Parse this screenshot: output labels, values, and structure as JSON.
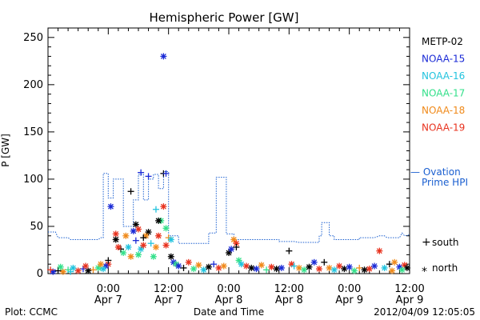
{
  "chart_data": {
    "type": "scatter",
    "title": "Hemispheric Power [GW]",
    "ylabel": "P [GW]",
    "xlabel": "Date and Time",
    "ylim": [
      0,
      260
    ],
    "yticks": [
      0,
      50,
      100,
      150,
      200,
      250
    ],
    "xlim": [
      "2012-04-06T12:00",
      "2012-04-09T12:00"
    ],
    "xticks": [
      {
        "t": "2012-04-07T00:00",
        "line1": "0:00",
        "line2": "Apr 7"
      },
      {
        "t": "2012-04-07T12:00",
        "line1": "12:00",
        "line2": "Apr 7"
      },
      {
        "t": "2012-04-08T00:00",
        "line1": "0:00",
        "line2": "Apr 8"
      },
      {
        "t": "2012-04-08T12:00",
        "line1": "12:00",
        "line2": "Apr 8"
      },
      {
        "t": "2012-04-09T00:00",
        "line1": "0:00",
        "line2": "Apr 9"
      },
      {
        "t": "2012-04-09T12:00",
        "line1": "12:00",
        "line2": "Apr 9"
      }
    ],
    "grid": false,
    "legend_position": "right",
    "series": [
      {
        "name": "METP-02",
        "color": "#000000"
      },
      {
        "name": "NOAA-15",
        "color": "#1a2ad6"
      },
      {
        "name": "NOAA-16",
        "color": "#22c3de"
      },
      {
        "name": "NOAA-17",
        "color": "#33e08a"
      },
      {
        "name": "NOAA-18",
        "color": "#f08a1a"
      },
      {
        "name": "NOAA-19",
        "color": "#e8321e"
      }
    ],
    "ovation": {
      "name_line1": "— Ovation",
      "name_line2": "Prime HPI",
      "color": "#1a5fd0",
      "points": [
        [
          "2012-04-06T12:00",
          44
        ],
        [
          "2012-04-06T13:30",
          44
        ],
        [
          "2012-04-06T14:00",
          38
        ],
        [
          "2012-04-06T16:00",
          38
        ],
        [
          "2012-04-06T16:30",
          36
        ],
        [
          "2012-04-06T22:00",
          36
        ],
        [
          "2012-04-06T22:30",
          38
        ],
        [
          "2012-04-06T23:00",
          38
        ],
        [
          "2012-04-06T23:00",
          106
        ],
        [
          "2012-04-07T00:00",
          106
        ],
        [
          "2012-04-07T00:00",
          80
        ],
        [
          "2012-04-07T01:00",
          80
        ],
        [
          "2012-04-07T01:00",
          100
        ],
        [
          "2012-04-07T03:00",
          100
        ],
        [
          "2012-04-07T03:00",
          50
        ],
        [
          "2012-04-07T05:00",
          50
        ],
        [
          "2012-04-07T05:00",
          78
        ],
        [
          "2012-04-07T06:00",
          78
        ],
        [
          "2012-04-07T06:00",
          105
        ],
        [
          "2012-04-07T07:00",
          105
        ],
        [
          "2012-04-07T07:00",
          78
        ],
        [
          "2012-04-07T08:00",
          78
        ],
        [
          "2012-04-07T08:00",
          100
        ],
        [
          "2012-04-07T09:00",
          100
        ],
        [
          "2012-04-07T09:00",
          105
        ],
        [
          "2012-04-07T10:00",
          105
        ],
        [
          "2012-04-07T10:00",
          90
        ],
        [
          "2012-04-07T11:00",
          90
        ],
        [
          "2012-04-07T11:00",
          108
        ],
        [
          "2012-04-07T12:00",
          108
        ],
        [
          "2012-04-07T12:00",
          40
        ],
        [
          "2012-04-07T14:00",
          40
        ],
        [
          "2012-04-07T14:00",
          32
        ],
        [
          "2012-04-07T20:00",
          32
        ],
        [
          "2012-04-07T20:00",
          43
        ],
        [
          "2012-04-07T21:30",
          43
        ],
        [
          "2012-04-07T21:30",
          102
        ],
        [
          "2012-04-07T23:30",
          102
        ],
        [
          "2012-04-07T23:30",
          42
        ],
        [
          "2012-04-08T01:00",
          42
        ],
        [
          "2012-04-08T01:00",
          36
        ],
        [
          "2012-04-08T10:00",
          36
        ],
        [
          "2012-04-08T10:00",
          34
        ],
        [
          "2012-04-08T13:00",
          34
        ],
        [
          "2012-04-08T14:00",
          33
        ],
        [
          "2012-04-08T18:00",
          33
        ],
        [
          "2012-04-08T18:00",
          40
        ],
        [
          "2012-04-08T18:30",
          40
        ],
        [
          "2012-04-08T18:30",
          54
        ],
        [
          "2012-04-08T20:00",
          54
        ],
        [
          "2012-04-08T20:00",
          40
        ],
        [
          "2012-04-08T21:00",
          40
        ],
        [
          "2012-04-08T21:00",
          36
        ],
        [
          "2012-04-09T02:00",
          36
        ],
        [
          "2012-04-09T02:00",
          38
        ],
        [
          "2012-04-09T05:00",
          38
        ],
        [
          "2012-04-09T06:00",
          40
        ],
        [
          "2012-04-09T07:00",
          40
        ],
        [
          "2012-04-09T07:30",
          38
        ],
        [
          "2012-04-09T10:00",
          38
        ],
        [
          "2012-04-09T10:30",
          43
        ],
        [
          "2012-04-09T11:00",
          40
        ],
        [
          "2012-04-09T12:00",
          41
        ]
      ]
    },
    "markers": {
      "south": "+",
      "north": "*"
    },
    "marker_legend": [
      {
        "marker": "+",
        "label": "south"
      },
      {
        "marker": "*",
        "label": "north"
      }
    ],
    "points": [
      {
        "s": "NOAA-15",
        "h": "north",
        "t": "2012-04-07T11:00",
        "y": 230
      },
      {
        "s": "NOAA-15",
        "h": "south",
        "t": "2012-04-07T08:00",
        "y": 103
      },
      {
        "s": "NOAA-15",
        "h": "south",
        "t": "2012-04-07T06:30",
        "y": 107
      },
      {
        "s": "METP-02",
        "h": "south",
        "t": "2012-04-07T11:00",
        "y": 106
      },
      {
        "s": "NOAA-15",
        "h": "south",
        "t": "2012-04-07T11:30",
        "y": 106
      },
      {
        "s": "NOAA-15",
        "h": "north",
        "t": "2012-04-07T00:30",
        "y": 71
      },
      {
        "s": "METP-02",
        "h": "south",
        "t": "2012-04-07T04:30",
        "y": 87
      },
      {
        "s": "NOAA-19",
        "h": "north",
        "t": "2012-04-07T11:00",
        "y": 71
      },
      {
        "s": "NOAA-16",
        "h": "south",
        "t": "2012-04-07T09:30",
        "y": 68
      },
      {
        "s": "NOAA-17",
        "h": "north",
        "t": "2012-04-07T10:30",
        "y": 56
      },
      {
        "s": "METP-02",
        "h": "north",
        "t": "2012-04-07T10:00",
        "y": 56
      },
      {
        "s": "METP-02",
        "h": "north",
        "t": "2012-04-07T05:30",
        "y": 52
      },
      {
        "s": "NOAA-19",
        "h": "north",
        "t": "2012-04-07T06:00",
        "y": 47
      },
      {
        "s": "METP-02",
        "h": "north",
        "t": "2012-04-07T08:00",
        "y": 44
      },
      {
        "s": "NOAA-18",
        "h": "north",
        "t": "2012-04-07T07:30",
        "y": 40
      },
      {
        "s": "NOAA-15",
        "h": "north",
        "t": "2012-04-07T05:00",
        "y": 45
      },
      {
        "s": "NOAA-19",
        "h": "north",
        "t": "2012-04-07T01:30",
        "y": 42
      },
      {
        "s": "METP-02",
        "h": "north",
        "t": "2012-04-07T01:30",
        "y": 36
      },
      {
        "s": "METP-02",
        "h": "south",
        "t": "2012-04-07T02:30",
        "y": 26
      },
      {
        "s": "NOAA-19",
        "h": "north",
        "t": "2012-04-07T02:00",
        "y": 28
      },
      {
        "s": "NOAA-17",
        "h": "north",
        "t": "2012-04-07T03:00",
        "y": 22
      },
      {
        "s": "NOAA-16",
        "h": "north",
        "t": "2012-04-07T04:00",
        "y": 28
      },
      {
        "s": "NOAA-18",
        "h": "north",
        "t": "2012-04-07T04:30",
        "y": 18
      },
      {
        "s": "NOAA-15",
        "h": "south",
        "t": "2012-04-07T05:30",
        "y": 35
      },
      {
        "s": "NOAA-17",
        "h": "north",
        "t": "2012-04-07T06:00",
        "y": 20
      },
      {
        "s": "NOAA-16",
        "h": "north",
        "t": "2012-04-07T06:30",
        "y": 26
      },
      {
        "s": "METP-02",
        "h": "south",
        "t": "2012-04-07T07:00",
        "y": 38
      },
      {
        "s": "NOAA-19",
        "h": "north",
        "t": "2012-04-07T07:00",
        "y": 30
      },
      {
        "s": "NOAA-16",
        "h": "south",
        "t": "2012-04-07T08:30",
        "y": 32
      },
      {
        "s": "NOAA-17",
        "h": "north",
        "t": "2012-04-07T09:00",
        "y": 18
      },
      {
        "s": "NOAA-18",
        "h": "north",
        "t": "2012-04-07T09:30",
        "y": 28
      },
      {
        "s": "NOAA-19",
        "h": "north",
        "t": "2012-04-07T10:00",
        "y": 40
      },
      {
        "s": "NOAA-17",
        "h": "north",
        "t": "2012-04-07T11:30",
        "y": 48
      },
      {
        "s": "NOAA-18",
        "h": "south",
        "t": "2012-04-07T12:00",
        "y": 38
      },
      {
        "s": "NOAA-16",
        "h": "north",
        "t": "2012-04-07T12:30",
        "y": 36
      },
      {
        "s": "NOAA-19",
        "h": "north",
        "t": "2012-04-07T11:30",
        "y": 30
      },
      {
        "s": "METP-02",
        "h": "north",
        "t": "2012-04-07T12:30",
        "y": 18
      },
      {
        "s": "NOAA-15",
        "h": "north",
        "t": "2012-04-07T13:00",
        "y": 12
      },
      {
        "s": "NOAA-17",
        "h": "north",
        "t": "2012-04-07T13:30",
        "y": 10
      },
      {
        "s": "NOAA-18",
        "h": "north",
        "t": "2012-04-07T03:30",
        "y": 40
      },
      {
        "s": "NOAA-19",
        "h": "north",
        "t": "2012-04-07T00:00",
        "y": 10
      },
      {
        "s": "METP-02",
        "h": "south",
        "t": "2012-04-07T00:00",
        "y": 14
      },
      {
        "s": "NOAA-15",
        "h": "north",
        "t": "2012-04-06T23:30",
        "y": 8
      },
      {
        "s": "NOAA-16",
        "h": "north",
        "t": "2012-04-06T23:00",
        "y": 5
      },
      {
        "s": "NOAA-17",
        "h": "north",
        "t": "2012-04-06T22:00",
        "y": 6
      },
      {
        "s": "NOAA-18",
        "h": "south",
        "t": "2012-04-06T21:00",
        "y": 4
      },
      {
        "s": "METP-02",
        "h": "north",
        "t": "2012-04-06T20:00",
        "y": 3
      },
      {
        "s": "NOAA-15",
        "h": "south",
        "t": "2012-04-06T19:00",
        "y": 5
      },
      {
        "s": "NOAA-19",
        "h": "north",
        "t": "2012-04-06T18:00",
        "y": 3
      },
      {
        "s": "NOAA-16",
        "h": "north",
        "t": "2012-04-06T17:00",
        "y": 6
      },
      {
        "s": "NOAA-17",
        "h": "south",
        "t": "2012-04-06T16:00",
        "y": 4
      },
      {
        "s": "NOAA-18",
        "h": "north",
        "t": "2012-04-06T15:00",
        "y": 2
      },
      {
        "s": "METP-02",
        "h": "south",
        "t": "2012-04-06T14:00",
        "y": 3
      },
      {
        "s": "NOAA-15",
        "h": "north",
        "t": "2012-04-06T13:00",
        "y": 2
      },
      {
        "s": "NOAA-19",
        "h": "south",
        "t": "2012-04-06T12:30",
        "y": 4
      },
      {
        "s": "NOAA-17",
        "h": "north",
        "t": "2012-04-06T14:30",
        "y": 7
      },
      {
        "s": "NOAA-16",
        "h": "south",
        "t": "2012-04-06T16:30",
        "y": 2
      },
      {
        "s": "NOAA-19",
        "h": "north",
        "t": "2012-04-06T19:30",
        "y": 8
      },
      {
        "s": "NOAA-18",
        "h": "north",
        "t": "2012-04-06T22:30",
        "y": 10
      },
      {
        "s": "NOAA-15",
        "h": "north",
        "t": "2012-04-07T14:00",
        "y": 8
      },
      {
        "s": "METP-02",
        "h": "south",
        "t": "2012-04-07T15:00",
        "y": 6
      },
      {
        "s": "NOAA-19",
        "h": "north",
        "t": "2012-04-07T16:00",
        "y": 12
      },
      {
        "s": "NOAA-17",
        "h": "north",
        "t": "2012-04-07T17:00",
        "y": 5
      },
      {
        "s": "NOAA-18",
        "h": "north",
        "t": "2012-04-07T18:00",
        "y": 9
      },
      {
        "s": "NOAA-16",
        "h": "north",
        "t": "2012-04-07T19:00",
        "y": 4
      },
      {
        "s": "METP-02",
        "h": "north",
        "t": "2012-04-07T20:00",
        "y": 7
      },
      {
        "s": "NOAA-15",
        "h": "south",
        "t": "2012-04-07T21:00",
        "y": 10
      },
      {
        "s": "NOAA-19",
        "h": "north",
        "t": "2012-04-07T22:00",
        "y": 6
      },
      {
        "s": "NOAA-18",
        "h": "north",
        "t": "2012-04-07T23:00",
        "y": 8
      },
      {
        "s": "METP-02",
        "h": "north",
        "t": "2012-04-08T00:00",
        "y": 22
      },
      {
        "s": "NOAA-15",
        "h": "north",
        "t": "2012-04-08T00:30",
        "y": 26
      },
      {
        "s": "NOAA-18",
        "h": "north",
        "t": "2012-04-08T01:00",
        "y": 36
      },
      {
        "s": "NOAA-19",
        "h": "north",
        "t": "2012-04-08T01:30",
        "y": 32
      },
      {
        "s": "METP-02",
        "h": "south",
        "t": "2012-04-08T01:30",
        "y": 28
      },
      {
        "s": "NOAA-17",
        "h": "north",
        "t": "2012-04-08T02:00",
        "y": 14
      },
      {
        "s": "NOAA-16",
        "h": "north",
        "t": "2012-04-08T02:30",
        "y": 10
      },
      {
        "s": "NOAA-19",
        "h": "north",
        "t": "2012-04-08T03:30",
        "y": 8
      },
      {
        "s": "METP-02",
        "h": "north",
        "t": "2012-04-08T04:30",
        "y": 6
      },
      {
        "s": "NOAA-15",
        "h": "north",
        "t": "2012-04-08T05:30",
        "y": 5
      },
      {
        "s": "NOAA-18",
        "h": "north",
        "t": "2012-04-08T06:30",
        "y": 9
      },
      {
        "s": "NOAA-17",
        "h": "south",
        "t": "2012-04-08T07:30",
        "y": 4
      },
      {
        "s": "NOAA-19",
        "h": "north",
        "t": "2012-04-08T08:30",
        "y": 7
      },
      {
        "s": "METP-02",
        "h": "north",
        "t": "2012-04-08T09:30",
        "y": 5
      },
      {
        "s": "NOAA-15",
        "h": "north",
        "t": "2012-04-08T10:30",
        "y": 6
      },
      {
        "s": "METP-02",
        "h": "south",
        "t": "2012-04-08T12:00",
        "y": 24
      },
      {
        "s": "NOAA-19",
        "h": "north",
        "t": "2012-04-08T12:30",
        "y": 10
      },
      {
        "s": "NOAA-16",
        "h": "south",
        "t": "2012-04-08T13:00",
        "y": 8
      },
      {
        "s": "NOAA-18",
        "h": "north",
        "t": "2012-04-08T14:00",
        "y": 6
      },
      {
        "s": "NOAA-17",
        "h": "north",
        "t": "2012-04-08T15:00",
        "y": 4
      },
      {
        "s": "METP-02",
        "h": "north",
        "t": "2012-04-08T16:00",
        "y": 7
      },
      {
        "s": "NOAA-15",
        "h": "north",
        "t": "2012-04-08T17:00",
        "y": 12
      },
      {
        "s": "NOAA-19",
        "h": "north",
        "t": "2012-04-08T18:00",
        "y": 5
      },
      {
        "s": "METP-02",
        "h": "south",
        "t": "2012-04-08T19:00",
        "y": 12
      },
      {
        "s": "NOAA-18",
        "h": "north",
        "t": "2012-04-08T20:00",
        "y": 6
      },
      {
        "s": "NOAA-16",
        "h": "north",
        "t": "2012-04-08T21:00",
        "y": 4
      },
      {
        "s": "NOAA-19",
        "h": "north",
        "t": "2012-04-08T22:00",
        "y": 8
      },
      {
        "s": "METP-02",
        "h": "north",
        "t": "2012-04-08T23:00",
        "y": 5
      },
      {
        "s": "NOAA-15",
        "h": "north",
        "t": "2012-04-09T00:00",
        "y": 7
      },
      {
        "s": "NOAA-17",
        "h": "north",
        "t": "2012-04-09T01:00",
        "y": 3
      },
      {
        "s": "NOAA-18",
        "h": "south",
        "t": "2012-04-09T02:00",
        "y": 6
      },
      {
        "s": "METP-02",
        "h": "north",
        "t": "2012-04-09T03:00",
        "y": 4
      },
      {
        "s": "NOAA-19",
        "h": "north",
        "t": "2012-04-09T04:00",
        "y": 5
      },
      {
        "s": "NOAA-19",
        "h": "north",
        "t": "2012-04-09T06:00",
        "y": 24
      },
      {
        "s": "NOAA-15",
        "h": "north",
        "t": "2012-04-09T05:00",
        "y": 8
      },
      {
        "s": "NOAA-16",
        "h": "north",
        "t": "2012-04-09T07:00",
        "y": 6
      },
      {
        "s": "METP-02",
        "h": "south",
        "t": "2012-04-09T08:00",
        "y": 10
      },
      {
        "s": "NOAA-18",
        "h": "north",
        "t": "2012-04-09T09:00",
        "y": 12
      },
      {
        "s": "NOAA-15",
        "h": "north",
        "t": "2012-04-09T10:00",
        "y": 7
      },
      {
        "s": "NOAA-19",
        "h": "north",
        "t": "2012-04-09T11:00",
        "y": 9
      },
      {
        "s": "METP-02",
        "h": "north",
        "t": "2012-04-09T11:30",
        "y": 6
      },
      {
        "s": "NOAA-17",
        "h": "north",
        "t": "2012-04-09T10:30",
        "y": 4
      },
      {
        "s": "NOAA-18",
        "h": "north",
        "t": "2012-04-09T08:30",
        "y": 3
      }
    ]
  },
  "footer": {
    "left": "Plot: CCMC",
    "center": "Date and Time",
    "right": "2012/04/09 12:05:05"
  }
}
